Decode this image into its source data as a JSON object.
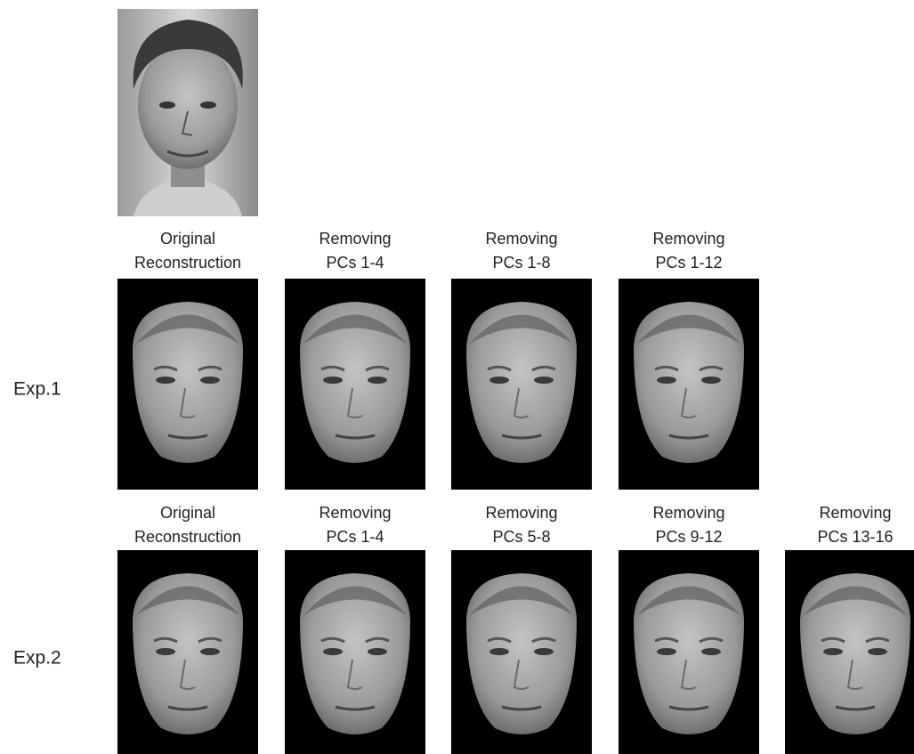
{
  "rows": [
    {
      "label": "Exp.1",
      "panels": [
        {
          "caption": [
            "Original",
            "Reconstruction"
          ]
        },
        {
          "caption": [
            "Removing",
            "PCs 1-4"
          ]
        },
        {
          "caption": [
            "Removing",
            "PCs 1-8"
          ]
        },
        {
          "caption": [
            "Removing",
            "PCs 1-12"
          ]
        }
      ]
    },
    {
      "label": "Exp.2",
      "panels": [
        {
          "caption": [
            "Original",
            "Reconstruction"
          ]
        },
        {
          "caption": [
            "Removing",
            "PCs 1-4"
          ]
        },
        {
          "caption": [
            "Removing",
            "PCs 5-8"
          ]
        },
        {
          "caption": [
            "Removing",
            "PCs 9-12"
          ]
        },
        {
          "caption": [
            "Removing",
            "PCs 13-16"
          ]
        }
      ]
    }
  ]
}
